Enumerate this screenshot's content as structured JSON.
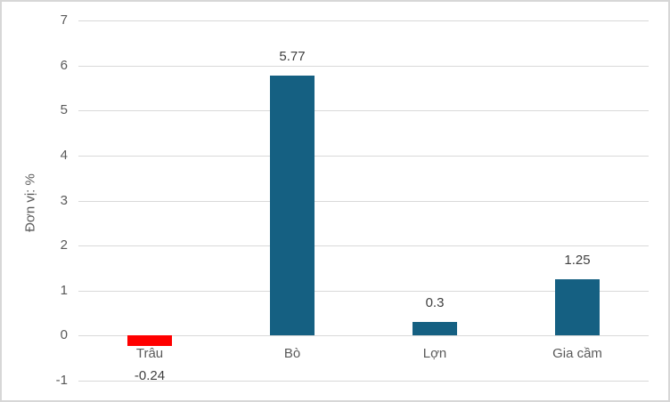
{
  "chart": {
    "background_color": "#ffffff",
    "border_color": "#d7d7d7",
    "accent_color": "#156082",
    "negative_color": "#ff0000"
  },
  "chart_data": {
    "type": "bar",
    "title": "",
    "xlabel": "",
    "ylabel": "Đơn vị: %",
    "categories": [
      "Trâu",
      "Bò",
      "Lợn",
      "Gia cầm"
    ],
    "values": [
      -0.24,
      5.77,
      0.3,
      1.25
    ],
    "data_labels": [
      "-0.24",
      "5.77",
      "0.3",
      "1.25"
    ],
    "bar_colors": [
      "#ff0000",
      "#156082",
      "#156082",
      "#156082"
    ],
    "ylim": [
      -1,
      7
    ],
    "yticks": [
      7,
      6,
      5,
      4,
      3,
      2,
      1,
      0,
      -1
    ],
    "grid": true,
    "gridline_color": "#d9d9d9",
    "tick_label_color": "#595959",
    "data_label_color": "#404040",
    "legend_position": "none"
  }
}
